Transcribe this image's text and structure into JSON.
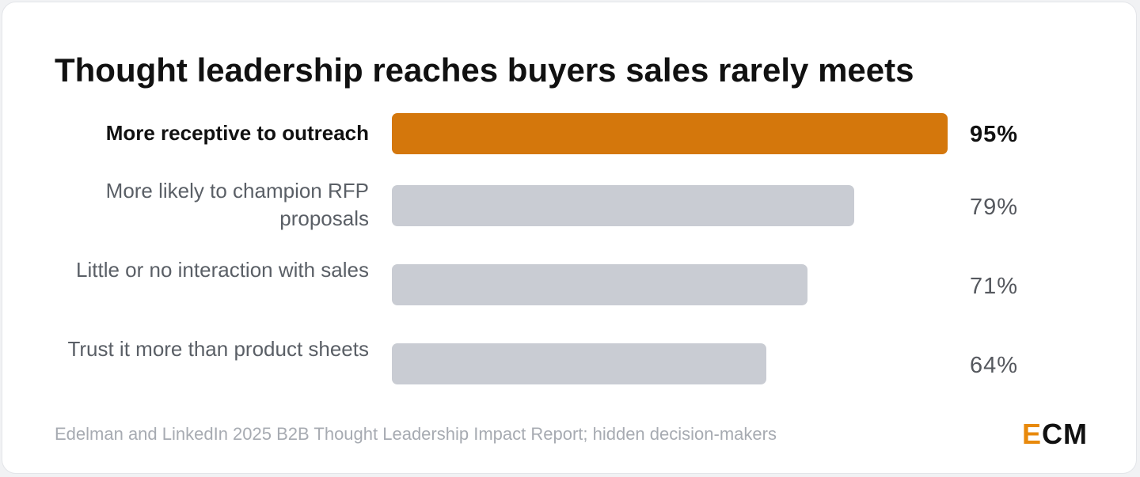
{
  "chart_data": {
    "type": "bar",
    "orientation": "horizontal",
    "title": "Thought leadership reaches buyers sales rarely meets",
    "categories": [
      "More receptive to outreach",
      "More likely to champion RFP proposals",
      "Little or no interaction with sales",
      "Trust it more than product sheets"
    ],
    "values": [
      95,
      79,
      71,
      64
    ],
    "value_labels": [
      "95%",
      "79%",
      "71%",
      "64%"
    ],
    "highlighted_index": 0,
    "xlim": [
      0,
      95
    ],
    "unit": "%",
    "grid": false,
    "legend": "none",
    "source": "Edelman and LinkedIn 2025 B2B Thought Leadership Impact Report; hidden decision-makers"
  },
  "logo": {
    "first": "E",
    "rest": "CM"
  },
  "colors": {
    "highlight": "#d4770c",
    "bar": "#c9ccd3",
    "logo_accent": "#e8890c"
  }
}
